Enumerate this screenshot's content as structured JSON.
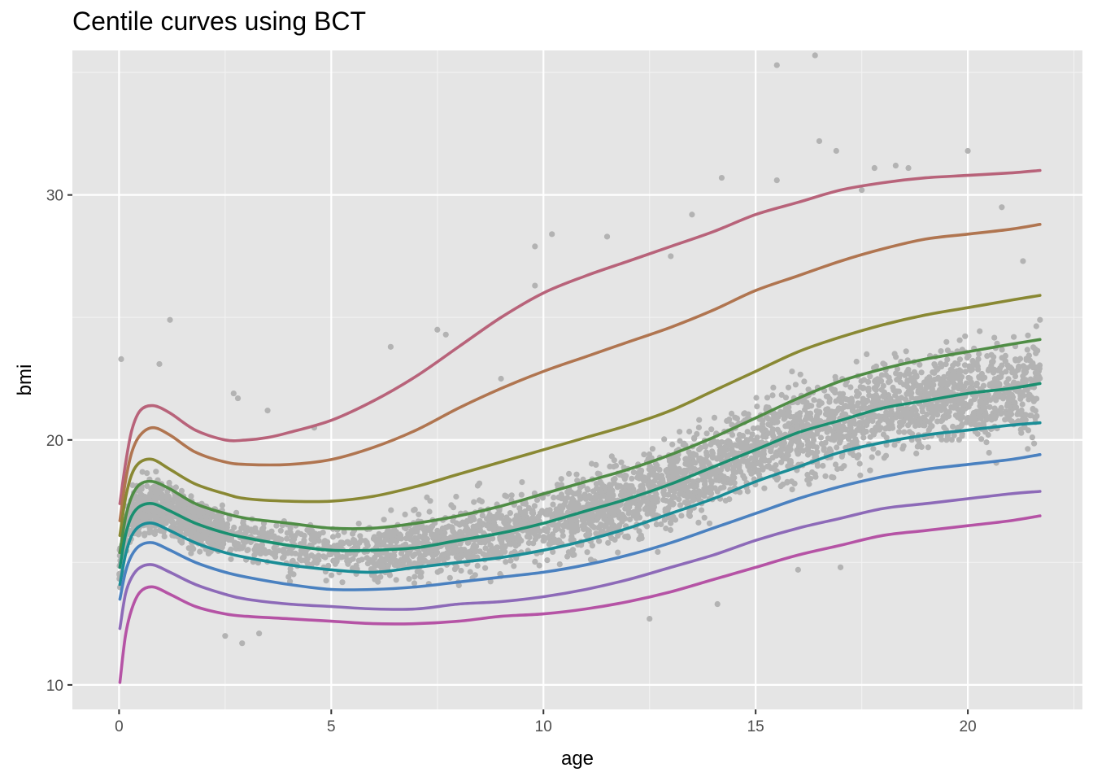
{
  "chart_data": {
    "type": "line",
    "title": "Centile curves using BCT",
    "xlabel": "age",
    "ylabel": "bmi",
    "xlim": [
      -1.1,
      22.7
    ],
    "ylim": [
      9.0,
      35.9
    ],
    "x_ticks": [
      0,
      5,
      10,
      15,
      20
    ],
    "y_ticks": [
      10,
      20,
      30
    ],
    "grid": true,
    "legend": "none",
    "background_color": "#e5e5e5",
    "point_color": "#b3b3b3",
    "series": [
      {
        "color": "#b8637a",
        "points": [
          [
            0.02,
            17.4
          ],
          [
            0.15,
            19.0
          ],
          [
            0.3,
            20.4
          ],
          [
            0.5,
            21.2
          ],
          [
            0.8,
            21.4
          ],
          [
            1.2,
            21.1
          ],
          [
            1.8,
            20.4
          ],
          [
            2.5,
            20.0
          ],
          [
            3.0,
            20.0
          ],
          [
            3.5,
            20.1
          ],
          [
            4.0,
            20.3
          ],
          [
            5.0,
            20.8
          ],
          [
            6.0,
            21.6
          ],
          [
            7.0,
            22.6
          ],
          [
            8.0,
            23.8
          ],
          [
            9.0,
            25.0
          ],
          [
            10.0,
            26.0
          ],
          [
            11.0,
            26.7
          ],
          [
            12.0,
            27.3
          ],
          [
            13.0,
            27.9
          ],
          [
            14.0,
            28.5
          ],
          [
            15.0,
            29.2
          ],
          [
            16.0,
            29.7
          ],
          [
            17.0,
            30.2
          ],
          [
            18.0,
            30.5
          ],
          [
            19.0,
            30.7
          ],
          [
            20.0,
            30.8
          ],
          [
            21.0,
            30.9
          ],
          [
            21.7,
            31.0
          ]
        ]
      },
      {
        "color": "#b07550",
        "points": [
          [
            0.02,
            16.7
          ],
          [
            0.15,
            18.3
          ],
          [
            0.3,
            19.5
          ],
          [
            0.5,
            20.2
          ],
          [
            0.8,
            20.5
          ],
          [
            1.2,
            20.2
          ],
          [
            1.8,
            19.5
          ],
          [
            2.5,
            19.1
          ],
          [
            3.0,
            19.0
          ],
          [
            4.0,
            19.0
          ],
          [
            5.0,
            19.2
          ],
          [
            6.0,
            19.7
          ],
          [
            7.0,
            20.4
          ],
          [
            8.0,
            21.3
          ],
          [
            9.0,
            22.1
          ],
          [
            10.0,
            22.8
          ],
          [
            11.0,
            23.4
          ],
          [
            12.0,
            24.0
          ],
          [
            13.0,
            24.6
          ],
          [
            14.0,
            25.3
          ],
          [
            15.0,
            26.1
          ],
          [
            16.0,
            26.7
          ],
          [
            17.0,
            27.3
          ],
          [
            18.0,
            27.8
          ],
          [
            19.0,
            28.2
          ],
          [
            20.0,
            28.4
          ],
          [
            21.0,
            28.6
          ],
          [
            21.7,
            28.8
          ]
        ]
      },
      {
        "color": "#898833",
        "points": [
          [
            0.02,
            16.1
          ],
          [
            0.15,
            17.6
          ],
          [
            0.3,
            18.6
          ],
          [
            0.5,
            19.1
          ],
          [
            0.8,
            19.2
          ],
          [
            1.2,
            18.8
          ],
          [
            1.8,
            18.2
          ],
          [
            2.5,
            17.8
          ],
          [
            3.0,
            17.6
          ],
          [
            4.0,
            17.5
          ],
          [
            5.0,
            17.5
          ],
          [
            6.0,
            17.7
          ],
          [
            7.0,
            18.1
          ],
          [
            8.0,
            18.6
          ],
          [
            9.0,
            19.1
          ],
          [
            10.0,
            19.6
          ],
          [
            11.0,
            20.1
          ],
          [
            12.0,
            20.6
          ],
          [
            13.0,
            21.2
          ],
          [
            14.0,
            22.0
          ],
          [
            15.0,
            22.8
          ],
          [
            16.0,
            23.6
          ],
          [
            17.0,
            24.2
          ],
          [
            18.0,
            24.7
          ],
          [
            19.0,
            25.1
          ],
          [
            20.0,
            25.4
          ],
          [
            21.0,
            25.7
          ],
          [
            21.7,
            25.9
          ]
        ]
      },
      {
        "color": "#4f8d45",
        "points": [
          [
            0.02,
            15.4
          ],
          [
            0.15,
            16.8
          ],
          [
            0.3,
            17.7
          ],
          [
            0.5,
            18.2
          ],
          [
            0.8,
            18.3
          ],
          [
            1.2,
            18.0
          ],
          [
            1.8,
            17.4
          ],
          [
            2.5,
            17.0
          ],
          [
            3.0,
            16.8
          ],
          [
            4.0,
            16.6
          ],
          [
            5.0,
            16.4
          ],
          [
            6.0,
            16.4
          ],
          [
            7.0,
            16.6
          ],
          [
            8.0,
            16.9
          ],
          [
            9.0,
            17.3
          ],
          [
            10.0,
            17.8
          ],
          [
            11.0,
            18.3
          ],
          [
            12.0,
            18.8
          ],
          [
            13.0,
            19.4
          ],
          [
            14.0,
            20.1
          ],
          [
            15.0,
            20.9
          ],
          [
            16.0,
            21.7
          ],
          [
            17.0,
            22.4
          ],
          [
            18.0,
            22.9
          ],
          [
            19.0,
            23.3
          ],
          [
            20.0,
            23.6
          ],
          [
            21.0,
            23.9
          ],
          [
            21.7,
            24.1
          ]
        ]
      },
      {
        "color": "#1a8f70",
        "points": [
          [
            0.02,
            14.8
          ],
          [
            0.15,
            16.1
          ],
          [
            0.3,
            16.9
          ],
          [
            0.5,
            17.3
          ],
          [
            0.8,
            17.4
          ],
          [
            1.2,
            17.1
          ],
          [
            1.8,
            16.6
          ],
          [
            2.5,
            16.2
          ],
          [
            3.0,
            16.0
          ],
          [
            4.0,
            15.7
          ],
          [
            5.0,
            15.5
          ],
          [
            6.0,
            15.5
          ],
          [
            7.0,
            15.6
          ],
          [
            8.0,
            15.9
          ],
          [
            9.0,
            16.2
          ],
          [
            10.0,
            16.6
          ],
          [
            11.0,
            17.1
          ],
          [
            12.0,
            17.6
          ],
          [
            13.0,
            18.2
          ],
          [
            14.0,
            18.9
          ],
          [
            15.0,
            19.6
          ],
          [
            16.0,
            20.3
          ],
          [
            17.0,
            20.8
          ],
          [
            18.0,
            21.3
          ],
          [
            19.0,
            21.6
          ],
          [
            20.0,
            21.9
          ],
          [
            21.0,
            22.1
          ],
          [
            21.7,
            22.3
          ]
        ]
      },
      {
        "color": "#1a8d96",
        "points": [
          [
            0.02,
            14.1
          ],
          [
            0.15,
            15.3
          ],
          [
            0.3,
            16.1
          ],
          [
            0.5,
            16.5
          ],
          [
            0.8,
            16.6
          ],
          [
            1.2,
            16.3
          ],
          [
            1.8,
            15.8
          ],
          [
            2.5,
            15.4
          ],
          [
            3.0,
            15.2
          ],
          [
            4.0,
            14.9
          ],
          [
            5.0,
            14.7
          ],
          [
            6.0,
            14.6
          ],
          [
            7.0,
            14.8
          ],
          [
            8.0,
            15.0
          ],
          [
            9.0,
            15.2
          ],
          [
            10.0,
            15.5
          ],
          [
            11.0,
            15.9
          ],
          [
            12.0,
            16.4
          ],
          [
            13.0,
            17.0
          ],
          [
            14.0,
            17.6
          ],
          [
            15.0,
            18.3
          ],
          [
            16.0,
            18.9
          ],
          [
            17.0,
            19.5
          ],
          [
            18.0,
            19.9
          ],
          [
            19.0,
            20.2
          ],
          [
            20.0,
            20.4
          ],
          [
            21.0,
            20.6
          ],
          [
            21.7,
            20.7
          ]
        ]
      },
      {
        "color": "#4a81c0",
        "points": [
          [
            0.02,
            13.5
          ],
          [
            0.15,
            14.6
          ],
          [
            0.3,
            15.3
          ],
          [
            0.5,
            15.7
          ],
          [
            0.8,
            15.8
          ],
          [
            1.2,
            15.5
          ],
          [
            1.8,
            15.0
          ],
          [
            2.5,
            14.6
          ],
          [
            3.0,
            14.4
          ],
          [
            4.0,
            14.1
          ],
          [
            5.0,
            13.9
          ],
          [
            6.0,
            13.9
          ],
          [
            7.0,
            14.0
          ],
          [
            8.0,
            14.2
          ],
          [
            9.0,
            14.4
          ],
          [
            10.0,
            14.6
          ],
          [
            11.0,
            14.9
          ],
          [
            12.0,
            15.3
          ],
          [
            13.0,
            15.8
          ],
          [
            14.0,
            16.4
          ],
          [
            15.0,
            17.0
          ],
          [
            16.0,
            17.6
          ],
          [
            17.0,
            18.1
          ],
          [
            18.0,
            18.5
          ],
          [
            19.0,
            18.8
          ],
          [
            20.0,
            19.0
          ],
          [
            21.0,
            19.2
          ],
          [
            21.7,
            19.4
          ]
        ]
      },
      {
        "color": "#8d6ab8",
        "points": [
          [
            0.02,
            12.3
          ],
          [
            0.15,
            13.7
          ],
          [
            0.3,
            14.4
          ],
          [
            0.5,
            14.8
          ],
          [
            0.8,
            14.9
          ],
          [
            1.2,
            14.6
          ],
          [
            1.8,
            14.1
          ],
          [
            2.5,
            13.7
          ],
          [
            3.0,
            13.5
          ],
          [
            4.0,
            13.3
          ],
          [
            5.0,
            13.2
          ],
          [
            6.0,
            13.1
          ],
          [
            7.0,
            13.1
          ],
          [
            8.0,
            13.3
          ],
          [
            9.0,
            13.4
          ],
          [
            10.0,
            13.6
          ],
          [
            11.0,
            13.9
          ],
          [
            12.0,
            14.3
          ],
          [
            13.0,
            14.8
          ],
          [
            14.0,
            15.3
          ],
          [
            15.0,
            15.9
          ],
          [
            16.0,
            16.4
          ],
          [
            17.0,
            16.8
          ],
          [
            18.0,
            17.2
          ],
          [
            19.0,
            17.4
          ],
          [
            20.0,
            17.6
          ],
          [
            21.0,
            17.8
          ],
          [
            21.7,
            17.9
          ]
        ]
      },
      {
        "color": "#b553a5",
        "points": [
          [
            0.02,
            10.1
          ],
          [
            0.15,
            12.0
          ],
          [
            0.3,
            13.1
          ],
          [
            0.5,
            13.8
          ],
          [
            0.8,
            14.0
          ],
          [
            1.2,
            13.7
          ],
          [
            1.8,
            13.2
          ],
          [
            2.5,
            12.9
          ],
          [
            3.0,
            12.8
          ],
          [
            4.0,
            12.7
          ],
          [
            5.0,
            12.6
          ],
          [
            6.0,
            12.5
          ],
          [
            7.0,
            12.5
          ],
          [
            8.0,
            12.6
          ],
          [
            9.0,
            12.8
          ],
          [
            10.0,
            12.9
          ],
          [
            11.0,
            13.1
          ],
          [
            12.0,
            13.4
          ],
          [
            13.0,
            13.8
          ],
          [
            14.0,
            14.3
          ],
          [
            15.0,
            14.8
          ],
          [
            16.0,
            15.3
          ],
          [
            17.0,
            15.7
          ],
          [
            18.0,
            16.1
          ],
          [
            19.0,
            16.3
          ],
          [
            20.0,
            16.5
          ],
          [
            21.0,
            16.7
          ],
          [
            21.7,
            16.9
          ]
        ]
      }
    ],
    "outlier_points": [
      [
        0.05,
        23.3
      ],
      [
        1.2,
        24.9
      ],
      [
        0.95,
        23.1
      ],
      [
        2.7,
        21.9
      ],
      [
        2.8,
        21.7
      ],
      [
        3.5,
        21.2
      ],
      [
        4.6,
        20.5
      ],
      [
        6.4,
        23.8
      ],
      [
        7.5,
        24.5
      ],
      [
        7.7,
        24.3
      ],
      [
        9.0,
        22.5
      ],
      [
        9.8,
        27.9
      ],
      [
        10.2,
        28.4
      ],
      [
        9.8,
        26.3
      ],
      [
        11.5,
        28.3
      ],
      [
        13.0,
        27.5
      ],
      [
        13.5,
        29.2
      ],
      [
        14.2,
        30.7
      ],
      [
        15.5,
        35.3
      ],
      [
        16.4,
        35.7
      ],
      [
        16.5,
        32.2
      ],
      [
        15.5,
        30.6
      ],
      [
        16.9,
        31.8
      ],
      [
        17.5,
        30.2
      ],
      [
        17.8,
        31.1
      ],
      [
        18.3,
        31.2
      ],
      [
        18.6,
        31.1
      ],
      [
        20.0,
        31.8
      ],
      [
        20.8,
        29.5
      ],
      [
        21.3,
        27.3
      ],
      [
        21.7,
        24.9
      ],
      [
        2.9,
        11.7
      ],
      [
        3.3,
        12.1
      ],
      [
        2.5,
        12.0
      ],
      [
        12.5,
        12.7
      ],
      [
        14.1,
        13.3
      ],
      [
        16.0,
        14.7
      ],
      [
        17.0,
        14.8
      ]
    ]
  }
}
